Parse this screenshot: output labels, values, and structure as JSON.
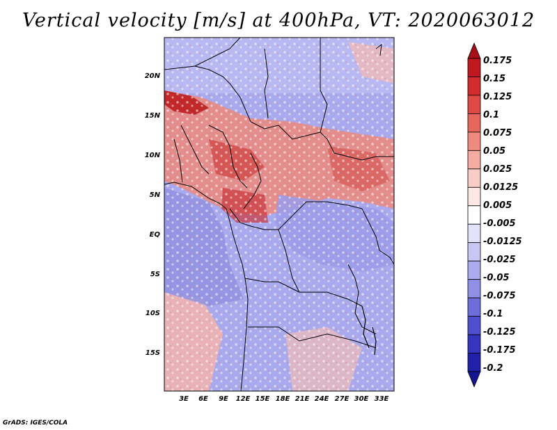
{
  "title": "Vertical velocity [m/s] at 400hPa, VT: 2020063012",
  "credit": "GrADS: IGES/COLA",
  "map": {
    "lat_labels": [
      "20N",
      "15N",
      "10N",
      "5N",
      "EQ",
      "5S",
      "10S",
      "15S"
    ],
    "lon_labels": [
      "3E",
      "6E",
      "9E",
      "12E",
      "15E",
      "18E",
      "21E",
      "24E",
      "27E",
      "30E",
      "33E"
    ],
    "field_description": "vertical velocity field over west/central Africa"
  },
  "colorbar": {
    "levels": [
      "0.175",
      "0.15",
      "0.125",
      "0.1",
      "0.075",
      "0.05",
      "0.025",
      "0.0125",
      "0.005",
      "-0.005",
      "-0.0125",
      "-0.025",
      "-0.05",
      "-0.075",
      "-0.1",
      "-0.125",
      "-0.175",
      "-0.2"
    ],
    "colors": [
      "#a50f15",
      "#c0181e",
      "#d42c2c",
      "#e04a44",
      "#e8675d",
      "#ef8a80",
      "#f5aca3",
      "#f9ccc6",
      "#fde8e5",
      "#ffffff",
      "#e2e2fb",
      "#c8c8f5",
      "#ababef",
      "#8f8fe6",
      "#6e6edb",
      "#4f4fcf",
      "#3535bf",
      "#2020a8",
      "#141490"
    ]
  }
}
